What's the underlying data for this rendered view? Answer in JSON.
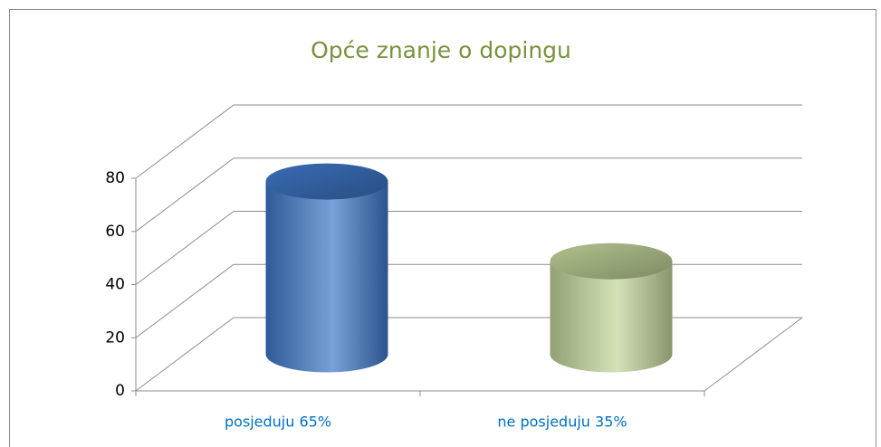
{
  "chart_data": {
    "type": "bar3d",
    "title": "Opće znanje o dopingu",
    "categories": [
      "posjeduju 65%",
      "ne posjeduju 35%"
    ],
    "values": [
      65,
      35
    ],
    "colors": [
      "#3f78c8",
      "#c3d69b"
    ],
    "ylim": [
      0,
      80
    ],
    "yticks": [
      0,
      20,
      40,
      60,
      80
    ],
    "grid": true
  }
}
